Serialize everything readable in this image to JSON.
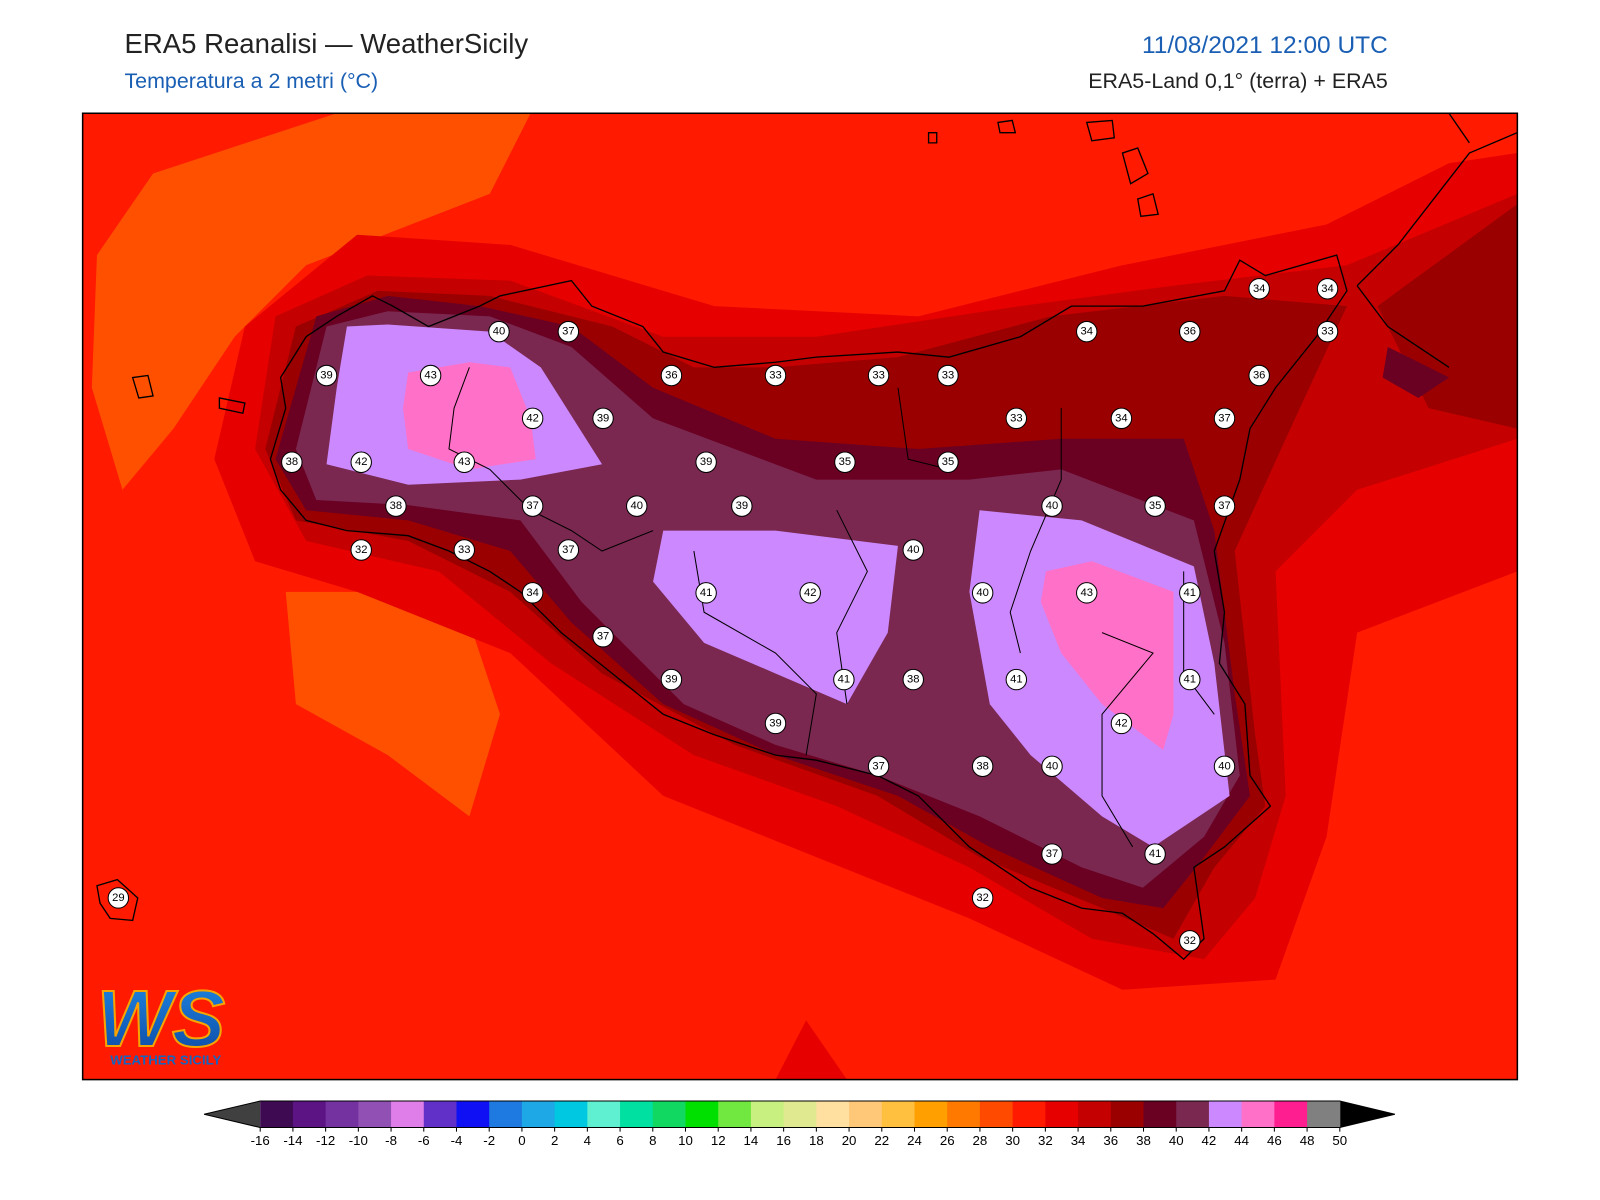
{
  "header": {
    "title": "ERA5 Reanalisi — WeatherSicily",
    "subtitle": "Temperatura a 2 metri (°C)",
    "date": "11/08/2021 12:00 UTC",
    "source": "ERA5-Land 0,1° (terra) + ERA5"
  },
  "logo": {
    "mark": "WS",
    "name": "WEATHER SICILY"
  },
  "stations": [
    40,
    37,
    39,
    43,
    42,
    39,
    38,
    42,
    43,
    38,
    37,
    40,
    32,
    33,
    37,
    34,
    37,
    36,
    33,
    33,
    33,
    39,
    39,
    35,
    35,
    33,
    34,
    36,
    34,
    34,
    33,
    36,
    34,
    37,
    40,
    35,
    37,
    40,
    41,
    42,
    40,
    43,
    41,
    39,
    41,
    38,
    41,
    41,
    39,
    42,
    37,
    38,
    40,
    40,
    37,
    41,
    32,
    32,
    29
  ],
  "colorbar": {
    "ticks": [
      -16,
      -14,
      -12,
      -10,
      -8,
      -6,
      -4,
      -2,
      0,
      2,
      4,
      6,
      8,
      10,
      12,
      14,
      16,
      18,
      20,
      22,
      24,
      26,
      28,
      30,
      32,
      34,
      36,
      38,
      40,
      42,
      44,
      46,
      48,
      50
    ],
    "colors": [
      "#3e0a52",
      "#5c1384",
      "#7432a0",
      "#9150b4",
      "#df7ee8",
      "#6030c8",
      "#1010f5",
      "#1e7ae0",
      "#1ea8e6",
      "#00c8e0",
      "#5ef0d0",
      "#00e0a0",
      "#10d860",
      "#00e000",
      "#70e840",
      "#c8f080",
      "#e0e890",
      "#ffe0a0",
      "#ffc878",
      "#ffc040",
      "#ffa000",
      "#ff7800",
      "#ff4a00",
      "#ff1a00",
      "#e60000",
      "#c40000",
      "#9a0000",
      "#6a0022",
      "#7a2850",
      "#cc88ff",
      "#ff70c8",
      "#ff1e90",
      "#808080"
    ],
    "under": "#404040",
    "over": "#000000"
  }
}
